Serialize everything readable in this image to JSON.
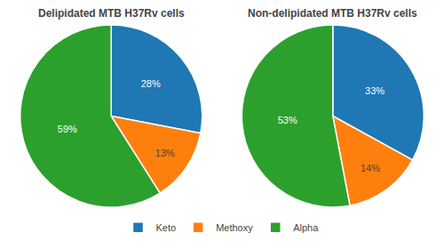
{
  "chart_data": [
    {
      "type": "pie",
      "title": "Delipidated MTB H37Rv cells",
      "categories": [
        "Keto",
        "Methoxy",
        "Alpha"
      ],
      "values": [
        28,
        13,
        59
      ],
      "value_labels": [
        "28%",
        "13%",
        "59%"
      ],
      "data_labels": true,
      "legend": "bottom"
    },
    {
      "type": "pie",
      "title": "Non-delipidated MTB H37Rv cells",
      "categories": [
        "Keto",
        "Methoxy",
        "Alpha"
      ],
      "values": [
        33,
        14,
        53
      ],
      "value_labels": [
        "33%",
        "14%",
        "53%"
      ],
      "data_labels": true,
      "legend": "bottom"
    }
  ]
}
